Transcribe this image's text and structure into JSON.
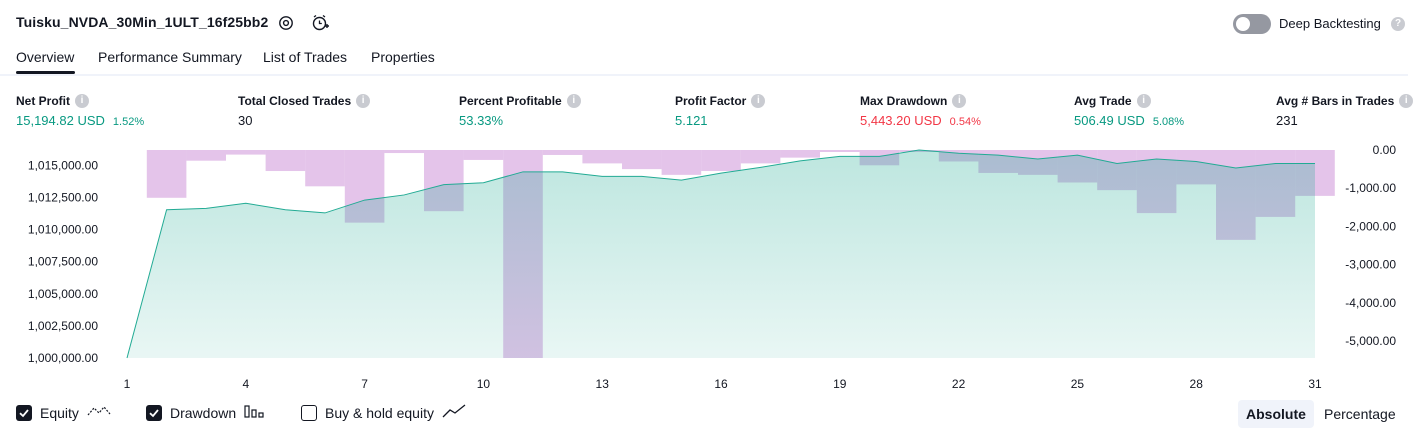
{
  "header": {
    "strategy_name": "Tuisku_NVDA_30Min_1ULT_16f25bb2",
    "settings_icon": "gear-icon",
    "alert_icon": "alarm-clock-plus-icon",
    "deep_backtesting_label": "Deep Backtesting",
    "deep_backtesting_enabled": false
  },
  "tabs": [
    {
      "label": "Overview",
      "active": true
    },
    {
      "label": "Performance Summary",
      "active": false
    },
    {
      "label": "List of Trades",
      "active": false
    },
    {
      "label": "Properties",
      "active": false
    }
  ],
  "metrics": [
    {
      "label": "Net Profit",
      "value": "15,194.82 USD",
      "sub": "1.52%",
      "color": "#089981"
    },
    {
      "label": "Total Closed Trades",
      "value": "30",
      "sub": "",
      "color": "#131722"
    },
    {
      "label": "Percent Profitable",
      "value": "53.33%",
      "sub": "",
      "color": "#089981"
    },
    {
      "label": "Profit Factor",
      "value": "5.121",
      "sub": "",
      "color": "#089981"
    },
    {
      "label": "Max Drawdown",
      "value": "5,443.20 USD",
      "sub": "0.54%",
      "color": "#f23645"
    },
    {
      "label": "Avg Trade",
      "value": "506.49 USD",
      "sub": "5.08%",
      "color": "#089981"
    },
    {
      "label": "Avg # Bars in Trades",
      "value": "231",
      "sub": "",
      "color": "#131722"
    }
  ],
  "chart_data": {
    "type": "area",
    "x_ticks": [
      "1",
      "4",
      "7",
      "10",
      "13",
      "16",
      "19",
      "22",
      "25",
      "28",
      "31"
    ],
    "x": [
      1,
      2,
      3,
      4,
      5,
      6,
      7,
      8,
      9,
      10,
      11,
      12,
      13,
      14,
      15,
      16,
      17,
      18,
      19,
      20,
      21,
      22,
      23,
      24,
      25,
      26,
      27,
      28,
      29,
      30,
      31
    ],
    "series": [
      {
        "name": "Equity",
        "values": [
          1000000,
          1011550,
          1011650,
          1012050,
          1011550,
          1011300,
          1012300,
          1012700,
          1013500,
          1013650,
          1014500,
          1014500,
          1014150,
          1014150,
          1013850,
          1014400,
          1014850,
          1015350,
          1015700,
          1015700,
          1016200,
          1015950,
          1015800,
          1015500,
          1015800,
          1015150,
          1015500,
          1015300,
          1014800,
          1015150,
          1015150
        ],
        "color": "#22ab94",
        "y_axis": "left"
      },
      {
        "name": "Drawdown",
        "values": [
          0,
          -1250,
          -280,
          -120,
          -550,
          -950,
          -1900,
          -80,
          -1600,
          -260,
          -5440,
          -130,
          -350,
          -500,
          -650,
          -550,
          -350,
          -200,
          -50,
          -400,
          0,
          -300,
          -600,
          -650,
          -850,
          -1050,
          -1650,
          -900,
          -2350,
          -1750,
          -1200
        ],
        "color": "#ce93d8",
        "y_axis": "right"
      }
    ],
    "y_left_ticks": [
      "1,015,000.00",
      "1,012,500.00",
      "1,010,000.00",
      "1,007,500.00",
      "1,005,000.00",
      "1,002,500.00",
      "1,000,000.00"
    ],
    "y_left_range": [
      1000000,
      1016200
    ],
    "y_right_ticks": [
      "0.00",
      "-1,000.00",
      "-2,000.00",
      "-3,000.00",
      "-4,000.00",
      "-5,000.00"
    ],
    "y_right_range": [
      -5440,
      0
    ]
  },
  "legend": {
    "equity_label": "Equity",
    "equity_checked": true,
    "drawdown_label": "Drawdown",
    "drawdown_checked": true,
    "buyhold_label": "Buy & hold equity",
    "buyhold_checked": false
  },
  "view_mode": {
    "absolute_label": "Absolute",
    "percentage_label": "Percentage",
    "selected": "Absolute"
  }
}
